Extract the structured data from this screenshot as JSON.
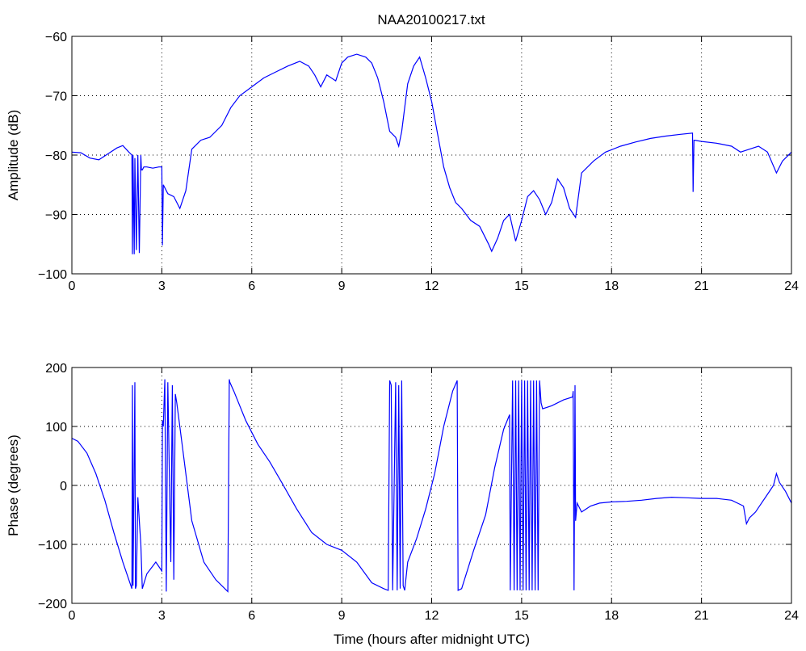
{
  "title": "NAA20100217.txt",
  "line_color": "#0000ff",
  "chart_data": [
    {
      "type": "line",
      "ylabel": "Amplitude (dB)",
      "xlabel": "",
      "xlim": [
        0,
        24
      ],
      "ylim": [
        -100,
        -60
      ],
      "xticks": [
        0,
        3,
        6,
        9,
        12,
        15,
        18,
        21,
        24
      ],
      "yticks": [
        -100,
        -90,
        -80,
        -70,
        -60
      ],
      "xtick_labels": [
        "0",
        "3",
        "6",
        "9",
        "12",
        "15",
        "18",
        "21",
        "24"
      ],
      "ytick_labels": [
        "−100",
        "−90",
        "−80",
        "−70",
        "−60"
      ],
      "grid": true,
      "series": [
        {
          "x": [
            0.0,
            0.3,
            0.6,
            0.9,
            1.2,
            1.5,
            1.7,
            1.9,
            2.0,
            2.02,
            2.04,
            2.08,
            2.1,
            2.15,
            2.2,
            2.25,
            2.3,
            2.32,
            2.35,
            2.4,
            2.5,
            2.7,
            2.9,
            2.95,
            3.0,
            3.02,
            3.05,
            3.2,
            3.4,
            3.6,
            3.8,
            4.0,
            4.3,
            4.6,
            5.0,
            5.3,
            5.6,
            6.0,
            6.4,
            6.8,
            7.2,
            7.6,
            7.9,
            8.1,
            8.3,
            8.5,
            8.8,
            9.0,
            9.2,
            9.5,
            9.8,
            10.0,
            10.2,
            10.4,
            10.6,
            10.8,
            10.9,
            11.0,
            11.2,
            11.4,
            11.6,
            11.8,
            12.0,
            12.2,
            12.4,
            12.6,
            12.8,
            13.0,
            13.3,
            13.6,
            13.9,
            14.0,
            14.2,
            14.4,
            14.6,
            14.8,
            15.0,
            15.2,
            15.4,
            15.6,
            15.8,
            16.0,
            16.2,
            16.4,
            16.6,
            16.8,
            17.0,
            17.4,
            17.8,
            18.3,
            18.8,
            19.3,
            19.8,
            20.3,
            20.7,
            20.72,
            20.75,
            20.78,
            21.0,
            21.5,
            22.0,
            22.3,
            22.6,
            22.9,
            23.2,
            23.5,
            23.7,
            24.0
          ],
          "y": [
            -79.5,
            -79.6,
            -80.5,
            -80.8,
            -79.8,
            -78.8,
            -78.4,
            -79.5,
            -80.0,
            -96.7,
            -80.0,
            -96.7,
            -80.5,
            -96.0,
            -80.0,
            -96.5,
            -80.0,
            -82.5,
            -82.5,
            -82.0,
            -82.0,
            -82.2,
            -82.0,
            -82.0,
            -82.0,
            -95.2,
            -85.0,
            -86.5,
            -87.0,
            -89.0,
            -86.0,
            -79.0,
            -77.5,
            -77.0,
            -75.0,
            -72.0,
            -70.0,
            -68.5,
            -67.0,
            -66.0,
            -65.0,
            -64.2,
            -65.0,
            -66.5,
            -68.5,
            -66.5,
            -67.5,
            -64.5,
            -63.5,
            -63.0,
            -63.5,
            -64.5,
            -67.0,
            -71.0,
            -76.0,
            -77.0,
            -78.5,
            -76.0,
            -68.0,
            -65.0,
            -63.5,
            -67.0,
            -71.0,
            -76.5,
            -82.0,
            -85.5,
            -88.0,
            -89.0,
            -91.0,
            -92.0,
            -95.0,
            -96.2,
            -94.0,
            -91.0,
            -90.0,
            -94.5,
            -91.0,
            -87.0,
            -86.0,
            -87.5,
            -90.0,
            -88.0,
            -84.0,
            -85.5,
            -89.0,
            -90.5,
            -83.0,
            -81.0,
            -79.5,
            -78.5,
            -77.8,
            -77.2,
            -76.8,
            -76.5,
            -76.3,
            -86.2,
            -77.5,
            -77.5,
            -77.7,
            -78.0,
            -78.5,
            -79.5,
            -79.0,
            -78.5,
            -79.5,
            -83.0,
            -81.0,
            -79.5
          ]
        }
      ]
    },
    {
      "type": "line",
      "ylabel": "Phase (degrees)",
      "xlabel": "Time (hours after midnight UTC)",
      "xlim": [
        0,
        24
      ],
      "ylim": [
        -200,
        200
      ],
      "xticks": [
        0,
        3,
        6,
        9,
        12,
        15,
        18,
        21,
        24
      ],
      "yticks": [
        -200,
        -100,
        0,
        100,
        200
      ],
      "xtick_labels": [
        "0",
        "3",
        "6",
        "9",
        "12",
        "15",
        "18",
        "21",
        "24"
      ],
      "ytick_labels": [
        "−200",
        "−100",
        "0",
        "100",
        "200"
      ],
      "grid": true,
      "series": [
        {
          "x": [
            0.0,
            0.2,
            0.5,
            0.8,
            1.1,
            1.4,
            1.7,
            2.0,
            2.02,
            2.04,
            2.1,
            2.12,
            2.15,
            2.2,
            2.25,
            2.3,
            2.35,
            2.5,
            2.8,
            3.0,
            3.02,
            3.05,
            3.1,
            3.15,
            3.2,
            3.3,
            3.35,
            3.4,
            3.45,
            3.5,
            3.7,
            4.0,
            4.4,
            4.8,
            5.2,
            5.25,
            5.27,
            5.4,
            5.8,
            6.2,
            6.6,
            7.0,
            7.5,
            8.0,
            8.5,
            9.0,
            9.5,
            10.0,
            10.4,
            10.55,
            10.6,
            10.65,
            10.7,
            10.8,
            10.85,
            10.9,
            10.95,
            11.0,
            11.05,
            11.1,
            11.2,
            11.5,
            11.8,
            12.1,
            12.4,
            12.7,
            12.85,
            12.88,
            13.0,
            13.4,
            13.8,
            14.1,
            14.4,
            14.6,
            14.62,
            14.7,
            14.75,
            14.8,
            14.85,
            14.9,
            14.95,
            15.0,
            15.05,
            15.1,
            15.15,
            15.2,
            15.25,
            15.3,
            15.35,
            15.4,
            15.45,
            15.5,
            15.55,
            15.6,
            15.65,
            15.7,
            16.0,
            16.4,
            16.7,
            16.72,
            16.75,
            16.78,
            16.8,
            16.85,
            16.9,
            17.0,
            17.3,
            17.6,
            18.0,
            18.5,
            19.0,
            19.5,
            20.0,
            20.5,
            21.0,
            21.5,
            22.0,
            22.4,
            22.5,
            22.6,
            22.8,
            23.0,
            23.2,
            23.4,
            23.5,
            23.6,
            23.8,
            24.0
          ],
          "y": [
            80,
            75,
            55,
            20,
            -25,
            -80,
            -130,
            -175,
            170,
            -170,
            175,
            -175,
            -170,
            -20,
            -60,
            -100,
            -175,
            -150,
            -130,
            -145,
            110,
            100,
            180,
            -180,
            175,
            -130,
            170,
            -160,
            155,
            140,
            60,
            -60,
            -130,
            -160,
            -180,
            180,
            175,
            160,
            110,
            70,
            40,
            5,
            -40,
            -80,
            -100,
            -110,
            -130,
            -165,
            -175,
            -178,
            178,
            170,
            -178,
            175,
            -178,
            170,
            -175,
            178,
            -170,
            -178,
            -130,
            -90,
            -40,
            20,
            100,
            160,
            178,
            -178,
            -175,
            -110,
            -50,
            30,
            95,
            120,
            -178,
            178,
            -178,
            178,
            -178,
            178,
            -178,
            178,
            -178,
            178,
            -178,
            178,
            -178,
            178,
            -178,
            178,
            -178,
            178,
            -178,
            178,
            140,
            130,
            135,
            145,
            150,
            160,
            -178,
            170,
            -60,
            -30,
            -35,
            -45,
            -35,
            -30,
            -28,
            -27,
            -25,
            -22,
            -20,
            -21,
            -22,
            -22,
            -25,
            -35,
            -65,
            -55,
            -45,
            -30,
            -15,
            0,
            20,
            5,
            -10,
            -30
          ]
        }
      ]
    }
  ]
}
